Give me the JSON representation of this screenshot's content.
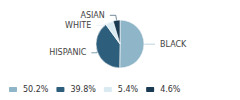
{
  "chart_data": {
    "type": "pie",
    "categories": [
      "BLACK",
      "HISPANIC",
      "WHITE",
      "ASIAN"
    ],
    "values": [
      50.2,
      39.8,
      5.4,
      4.6
    ],
    "value_labels": [
      "50.2%",
      "39.8%",
      "5.4%",
      "4.6%"
    ],
    "colors": [
      "#8fb5c8",
      "#2d5f7c",
      "#daeaf2",
      "#1a3a52"
    ],
    "legend": "lower left"
  }
}
